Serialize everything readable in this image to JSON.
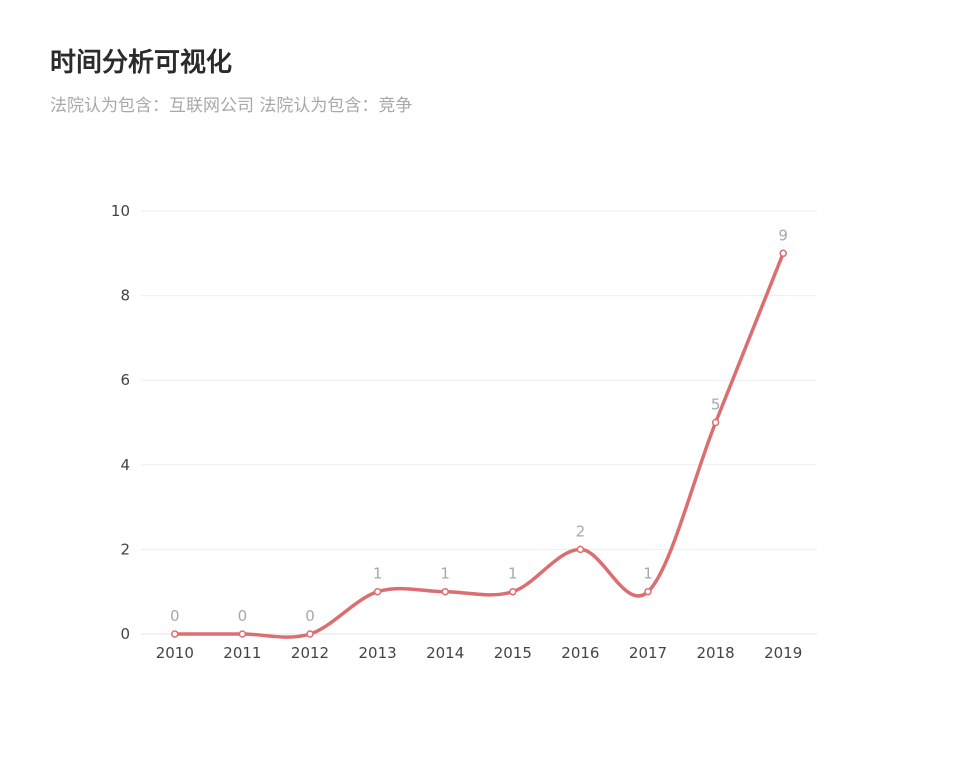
{
  "header": {
    "title": "时间分析可视化",
    "subtitle": "法院认为包含：互联网公司  法院认为包含：竞争"
  },
  "colors": {
    "line": "#db6e71",
    "point_fill": "#ffffff",
    "grid": "#eeeeee",
    "axis_line": "#e6e6e6",
    "data_label": "#a8a8a8",
    "tick_label": "#444444"
  },
  "chart_data": {
    "type": "line",
    "title": "时间分析可视化",
    "subtitle": "法院认为包含：互联网公司  法院认为包含：竞争",
    "categories": [
      "2010",
      "2011",
      "2012",
      "2013",
      "2014",
      "2015",
      "2016",
      "2017",
      "2018",
      "2019"
    ],
    "series": [
      {
        "values": [
          0,
          0,
          0,
          1,
          1,
          1,
          2,
          1,
          5,
          9
        ]
      }
    ],
    "ylim": [
      0,
      10
    ],
    "yticks": [
      0,
      2,
      4,
      6,
      8,
      10
    ],
    "xlabel": "",
    "ylabel": "",
    "smooth": true,
    "grid": true,
    "data_labels": true,
    "legend": "none"
  }
}
